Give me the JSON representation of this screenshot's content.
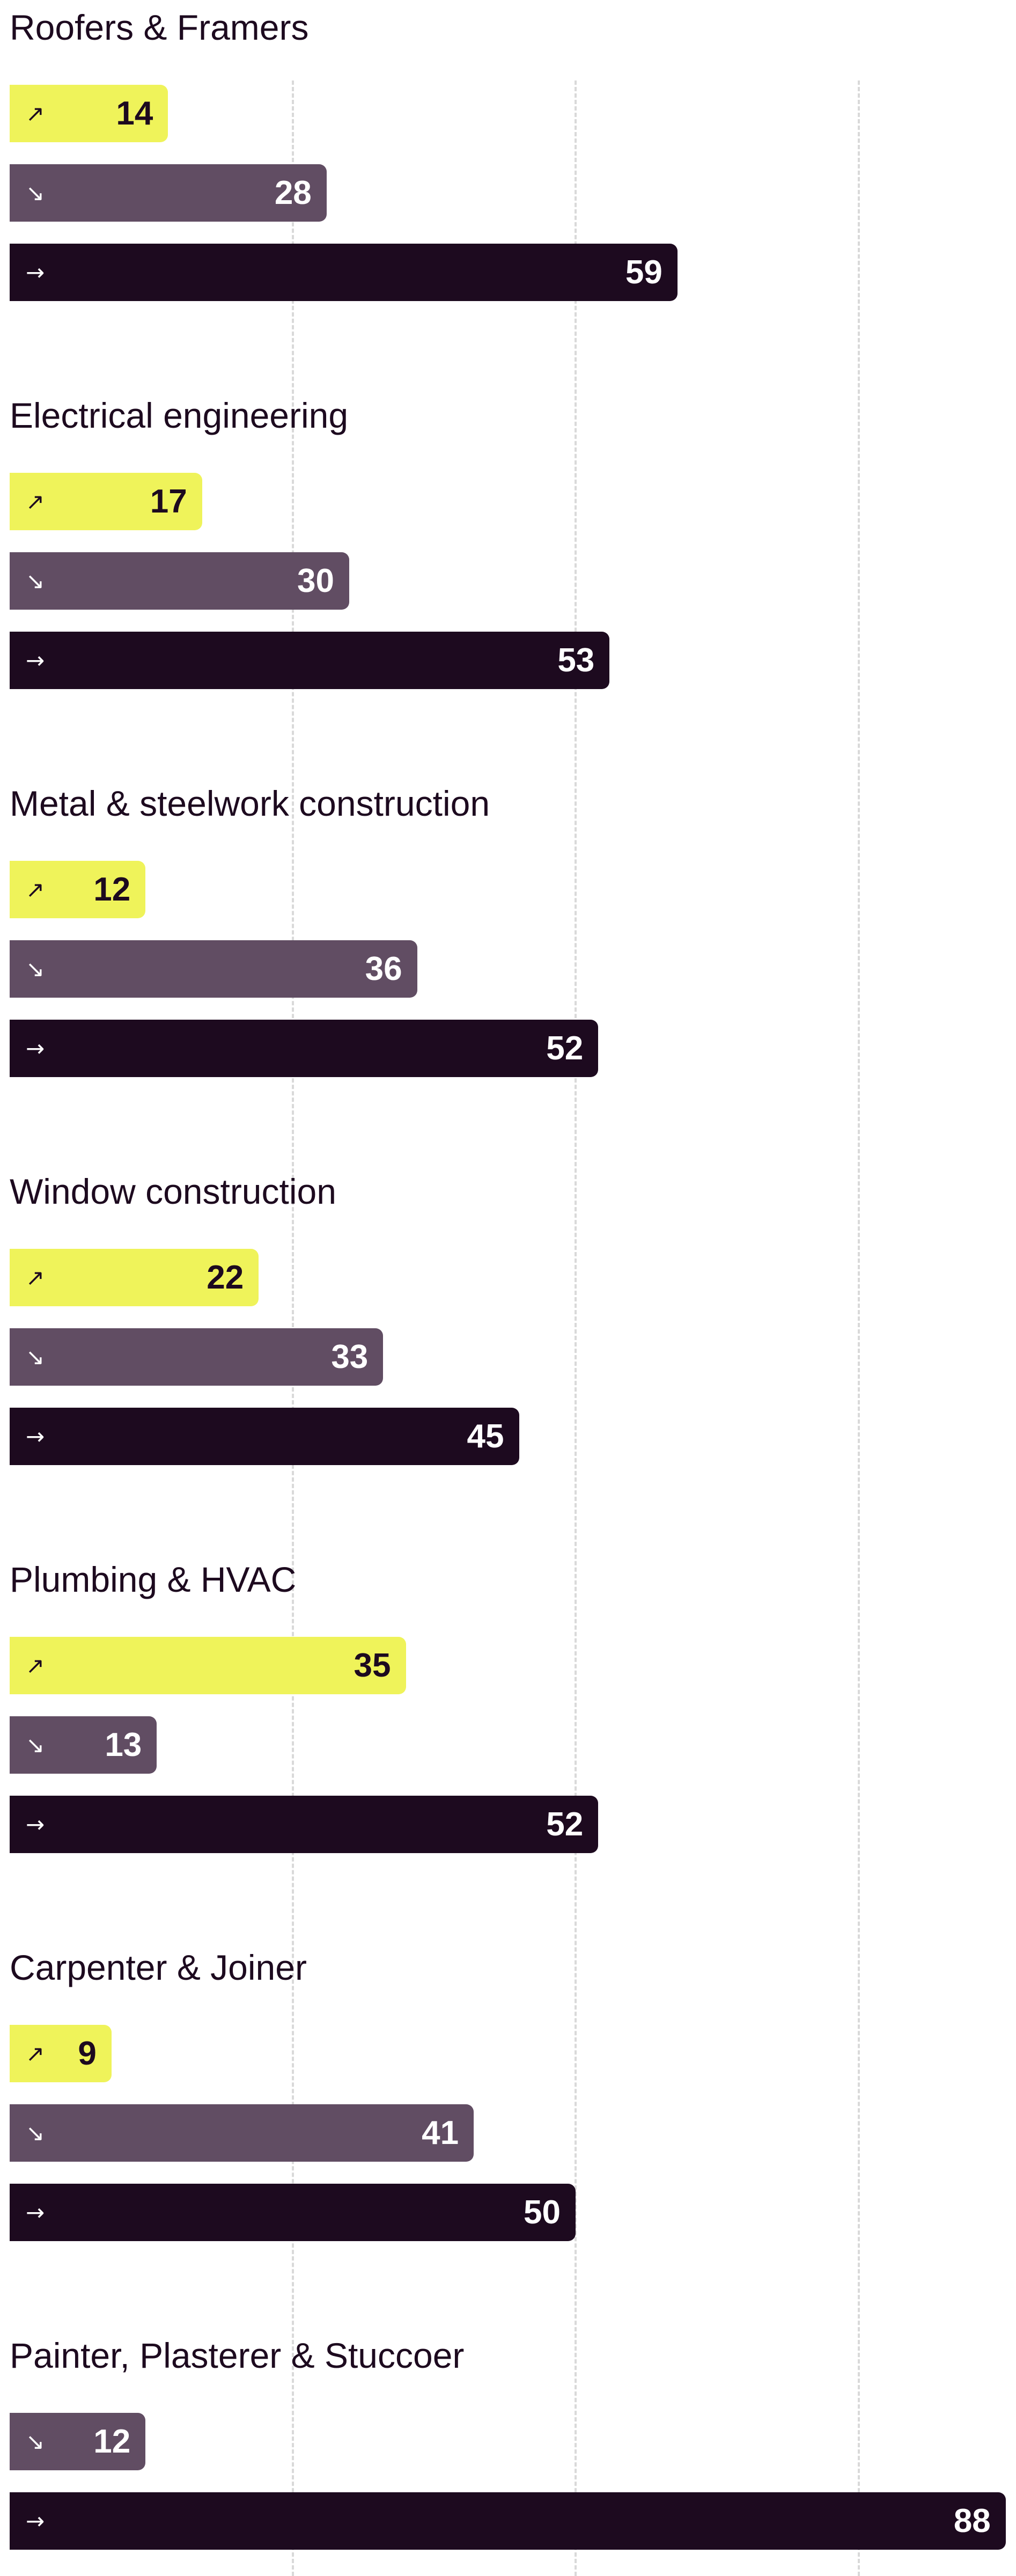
{
  "chart_data": {
    "type": "bar",
    "orientation": "horizontal",
    "xlim": [
      0,
      100
    ],
    "grid": true,
    "gridlines_at": [
      25,
      50,
      75
    ],
    "groups": [
      {
        "title": "Roofers & Framers",
        "bars": [
          {
            "icon": "↗",
            "icon_name": "arrow-up-right-icon",
            "kind": "up",
            "value": 14
          },
          {
            "icon": "↘",
            "icon_name": "arrow-down-right-icon",
            "kind": "down",
            "value": 28
          },
          {
            "icon": "→",
            "icon_name": "arrow-right-icon",
            "kind": "neutral",
            "value": 59
          }
        ]
      },
      {
        "title": "Electrical engineering",
        "bars": [
          {
            "icon": "↗",
            "icon_name": "arrow-up-right-icon",
            "kind": "up",
            "value": 17
          },
          {
            "icon": "↘",
            "icon_name": "arrow-down-right-icon",
            "kind": "down",
            "value": 30
          },
          {
            "icon": "→",
            "icon_name": "arrow-right-icon",
            "kind": "neutral",
            "value": 53
          }
        ]
      },
      {
        "title": "Metal & steelwork construction",
        "bars": [
          {
            "icon": "↗",
            "icon_name": "arrow-up-right-icon",
            "kind": "up",
            "value": 12
          },
          {
            "icon": "↘",
            "icon_name": "arrow-down-right-icon",
            "kind": "down",
            "value": 36
          },
          {
            "icon": "→",
            "icon_name": "arrow-right-icon",
            "kind": "neutral",
            "value": 52
          }
        ]
      },
      {
        "title": "Window construction",
        "bars": [
          {
            "icon": "↗",
            "icon_name": "arrow-up-right-icon",
            "kind": "up",
            "value": 22
          },
          {
            "icon": "↘",
            "icon_name": "arrow-down-right-icon",
            "kind": "down",
            "value": 33
          },
          {
            "icon": "→",
            "icon_name": "arrow-right-icon",
            "kind": "neutral",
            "value": 45
          }
        ]
      },
      {
        "title": "Plumbing & HVAC",
        "bars": [
          {
            "icon": "↗",
            "icon_name": "arrow-up-right-icon",
            "kind": "up",
            "value": 35
          },
          {
            "icon": "↘",
            "icon_name": "arrow-down-right-icon",
            "kind": "down",
            "value": 13
          },
          {
            "icon": "→",
            "icon_name": "arrow-right-icon",
            "kind": "neutral",
            "value": 52
          }
        ]
      },
      {
        "title": "Carpenter & Joiner",
        "bars": [
          {
            "icon": "↗",
            "icon_name": "arrow-up-right-icon",
            "kind": "up",
            "value": 9
          },
          {
            "icon": "↘",
            "icon_name": "arrow-down-right-icon",
            "kind": "down",
            "value": 41
          },
          {
            "icon": "→",
            "icon_name": "arrow-right-icon",
            "kind": "neutral",
            "value": 50
          }
        ]
      },
      {
        "title": "Painter, Plasterer & Stuccoer",
        "bars": [
          {
            "icon": "↘",
            "icon_name": "arrow-down-right-icon",
            "kind": "down",
            "value": 12
          },
          {
            "icon": "→",
            "icon_name": "arrow-right-icon",
            "kind": "neutral",
            "value": 88
          }
        ]
      }
    ]
  },
  "colors": {
    "up": "#eff35a",
    "down": "#614d63",
    "neutral": "#1d0a1f",
    "title_text": "#1d0a1f",
    "gridline": "#d9d9d9"
  }
}
